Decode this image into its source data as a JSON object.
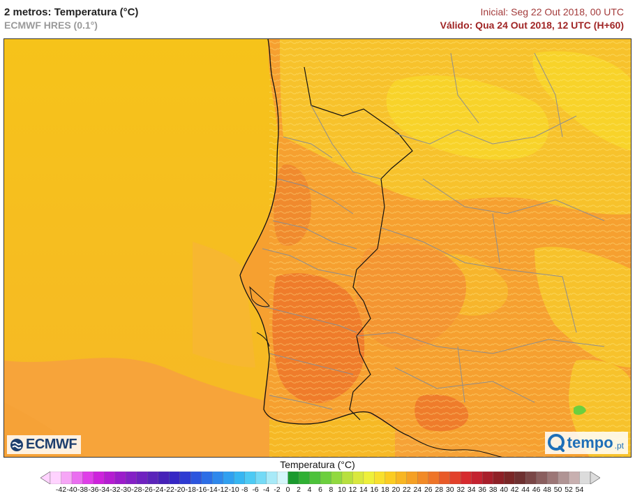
{
  "header": {
    "title": "2 metros: Temperatura (°C)",
    "model": "ECMWF HRES (0.1°)",
    "initial": "Inicial: Seg 22 Out 2018, 00 UTC",
    "valid": "Válido: Qua 24 Out 2018, 12 UTC (H+60)"
  },
  "logos": {
    "left": "ECMWF",
    "right": "tempo",
    "right_suffix": ".pt"
  },
  "legend": {
    "title": "Temperatura (°C)",
    "labels": [
      "-42",
      "-40",
      "-38",
      "-36",
      "-34",
      "-32",
      "-30",
      "-28",
      "-26",
      "-24",
      "-22",
      "-20",
      "-18",
      "-16",
      "-14",
      "-12",
      "-10",
      "-8",
      "-6",
      "-4",
      "-2",
      "0",
      "2",
      "4",
      "6",
      "8",
      "10",
      "12",
      "14",
      "16",
      "18",
      "20",
      "22",
      "24",
      "26",
      "28",
      "30",
      "32",
      "34",
      "36",
      "38",
      "40",
      "42",
      "44",
      "46",
      "48",
      "50",
      "52",
      "54"
    ],
    "colors": [
      "#ffd3ff",
      "#f6a6f6",
      "#ea6ef0",
      "#df3ee8",
      "#cd22dc",
      "#b51cd2",
      "#9b1ccb",
      "#8420c6",
      "#6f22c0",
      "#5a24ba",
      "#4622b8",
      "#3526c4",
      "#2e3bd2",
      "#2c55de",
      "#2c6ee6",
      "#2e88ec",
      "#30a0f0",
      "#36b6f2",
      "#4ccaf4",
      "#74daf6",
      "#a8eaf8",
      "#d4f6fa",
      "#1a9a2e",
      "#2fb033",
      "#4cc23a",
      "#6ccf3e",
      "#91d93f",
      "#b8e03e",
      "#d9e83e",
      "#eef03a",
      "#f8e02e",
      "#fbcc22",
      "#f8b622",
      "#f5a024",
      "#f28a26",
      "#ee7428",
      "#e85a28",
      "#e2402a",
      "#d62a2e",
      "#c42230",
      "#a81e2a",
      "#8e2026",
      "#7a2626",
      "#6e3030",
      "#7a4646",
      "#8a5e5e",
      "#9c7676",
      "#b09494",
      "#c8b0b0",
      "#dcdcdc"
    ]
  },
  "map": {
    "colors": {
      "sea": "#f6c21a",
      "sea_warm": "#f7a43a",
      "land_orange": "#f6a030",
      "land_hot": "#f08a2e",
      "land_hotter": "#ef7c2b",
      "land_cool": "#f7c22c",
      "land_cooler": "#f8d32a",
      "border": "#8e8e8e",
      "coast": "#111111"
    }
  }
}
